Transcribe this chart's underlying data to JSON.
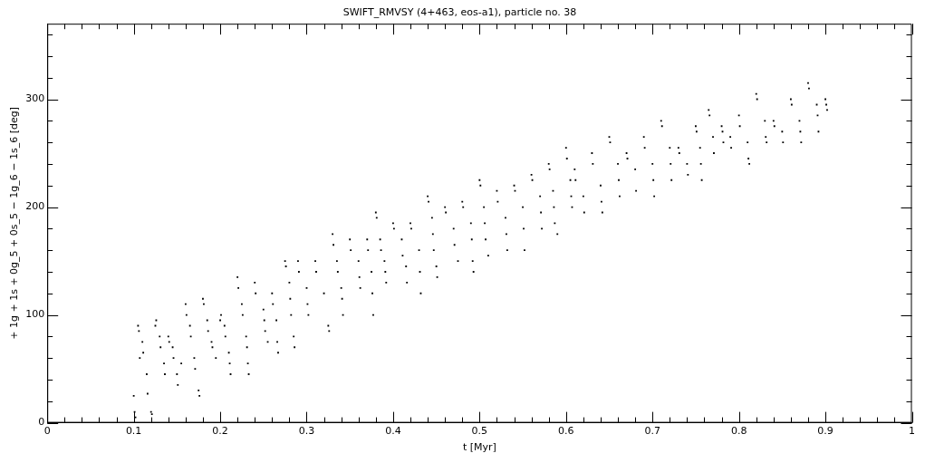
{
  "chart_data": {
    "type": "scatter",
    "title": "SWIFT_RMVSY (4+463, eos-a1), particle no. 38",
    "xlabel": "t [Myr]",
    "ylabel": "+ 1g + 1s + 0g_5 + 0s_5 − 1g_6 − 1s_6 [deg]",
    "xlim": [
      0,
      1
    ],
    "ylim": [
      0,
      370
    ],
    "xticks": [
      0,
      {
        "value": 0.02,
        "label": null
      },
      {
        "value": 0.04,
        "label": null
      },
      {
        "value": 0.06,
        "label": null
      },
      {
        "value": 0.08,
        "label": null
      },
      0.1,
      {
        "value": 0.12,
        "label": null
      },
      {
        "value": 0.14,
        "label": null
      },
      {
        "value": 0.16,
        "label": null
      },
      {
        "value": 0.18,
        "label": null
      },
      0.2,
      {
        "value": 0.22,
        "label": null
      },
      {
        "value": 0.24,
        "label": null
      },
      {
        "value": 0.26,
        "label": null
      },
      {
        "value": 0.28,
        "label": null
      },
      0.3,
      {
        "value": 0.32,
        "label": null
      },
      {
        "value": 0.34,
        "label": null
      },
      {
        "value": 0.36,
        "label": null
      },
      {
        "value": 0.38,
        "label": null
      },
      0.4,
      {
        "value": 0.42,
        "label": null
      },
      {
        "value": 0.44,
        "label": null
      },
      {
        "value": 0.46,
        "label": null
      },
      {
        "value": 0.48,
        "label": null
      },
      0.5,
      {
        "value": 0.52,
        "label": null
      },
      {
        "value": 0.54,
        "label": null
      },
      {
        "value": 0.56,
        "label": null
      },
      {
        "value": 0.58,
        "label": null
      },
      0.6,
      {
        "value": 0.62,
        "label": null
      },
      {
        "value": 0.64,
        "label": null
      },
      {
        "value": 0.66,
        "label": null
      },
      {
        "value": 0.68,
        "label": null
      },
      0.7,
      {
        "value": 0.72,
        "label": null
      },
      {
        "value": 0.74,
        "label": null
      },
      {
        "value": 0.76,
        "label": null
      },
      {
        "value": 0.78,
        "label": null
      },
      0.8,
      {
        "value": 0.82,
        "label": null
      },
      {
        "value": 0.84,
        "label": null
      },
      {
        "value": 0.86,
        "label": null
      },
      {
        "value": 0.88,
        "label": null
      },
      0.9,
      {
        "value": 0.92,
        "label": null
      },
      {
        "value": 0.94,
        "label": null
      },
      {
        "value": 0.96,
        "label": null
      },
      {
        "value": 0.98,
        "label": null
      },
      1
    ],
    "yticks": [
      0,
      {
        "value": 20,
        "label": null
      },
      {
        "value": 40,
        "label": null
      },
      {
        "value": 60,
        "label": null
      },
      {
        "value": 80,
        "label": null
      },
      100,
      {
        "value": 120,
        "label": null
      },
      {
        "value": 140,
        "label": null
      },
      {
        "value": 160,
        "label": null
      },
      {
        "value": 180,
        "label": null
      },
      200,
      {
        "value": 220,
        "label": null
      },
      {
        "value": 240,
        "label": null
      },
      {
        "value": 260,
        "label": null
      },
      {
        "value": 280,
        "label": null
      },
      300,
      {
        "value": 320,
        "label": null
      },
      {
        "value": 340,
        "label": null
      },
      {
        "value": 360,
        "label": null
      }
    ],
    "marker": "square",
    "series": [
      {
        "color": "#000000",
        "x": [
          0.1,
          0.101,
          0.102,
          0.105,
          0.106,
          0.107,
          0.11,
          0.111,
          0.115,
          0.116,
          0.12,
          0.121,
          0.125,
          0.126,
          0.13,
          0.131,
          0.135,
          0.136,
          0.14,
          0.141,
          0.145,
          0.146,
          0.15,
          0.151,
          0.155,
          0.16,
          0.161,
          0.165,
          0.166,
          0.17,
          0.171,
          0.175,
          0.176,
          0.18,
          0.181,
          0.185,
          0.186,
          0.19,
          0.191,
          0.195,
          0.2,
          0.201,
          0.205,
          0.206,
          0.21,
          0.211,
          0.212,
          0.22,
          0.221,
          0.225,
          0.226,
          0.23,
          0.231,
          0.232,
          0.233,
          0.24,
          0.241,
          0.25,
          0.251,
          0.252,
          0.255,
          0.26,
          0.261,
          0.265,
          0.266,
          0.267,
          0.275,
          0.276,
          0.28,
          0.281,
          0.282,
          0.285,
          0.286,
          0.29,
          0.291,
          0.3,
          0.301,
          0.302,
          0.31,
          0.311,
          0.32,
          0.325,
          0.326,
          0.33,
          0.331,
          0.335,
          0.336,
          0.34,
          0.341,
          0.342,
          0.35,
          0.351,
          0.36,
          0.361,
          0.362,
          0.37,
          0.371,
          0.375,
          0.376,
          0.377,
          0.38,
          0.381,
          0.385,
          0.386,
          0.39,
          0.391,
          0.392,
          0.4,
          0.401,
          0.41,
          0.411,
          0.415,
          0.416,
          0.42,
          0.421,
          0.43,
          0.431,
          0.432,
          0.44,
          0.441,
          0.445,
          0.446,
          0.447,
          0.45,
          0.451,
          0.46,
          0.461,
          0.47,
          0.471,
          0.475,
          0.48,
          0.481,
          0.49,
          0.491,
          0.492,
          0.493,
          0.5,
          0.501,
          0.505,
          0.506,
          0.507,
          0.51,
          0.52,
          0.521,
          0.53,
          0.531,
          0.532,
          0.54,
          0.541,
          0.55,
          0.551,
          0.552,
          0.56,
          0.561,
          0.57,
          0.571,
          0.572,
          0.58,
          0.581,
          0.585,
          0.586,
          0.587,
          0.59,
          0.6,
          0.601,
          0.605,
          0.606,
          0.607,
          0.61,
          0.611,
          0.62,
          0.621,
          0.63,
          0.631,
          0.64,
          0.641,
          0.642,
          0.65,
          0.651,
          0.66,
          0.661,
          0.662,
          0.67,
          0.671,
          0.68,
          0.681,
          0.69,
          0.691,
          0.7,
          0.701,
          0.702,
          0.71,
          0.711,
          0.72,
          0.721,
          0.722,
          0.73,
          0.731,
          0.74,
          0.741,
          0.75,
          0.751,
          0.755,
          0.756,
          0.757,
          0.765,
          0.766,
          0.77,
          0.771,
          0.78,
          0.781,
          0.782,
          0.79,
          0.791,
          0.8,
          0.801,
          0.81,
          0.811,
          0.812,
          0.82,
          0.821,
          0.83,
          0.831,
          0.832,
          0.84,
          0.841,
          0.85,
          0.851,
          0.86,
          0.861,
          0.87,
          0.871,
          0.872,
          0.88,
          0.881,
          0.89,
          0.891,
          0.892,
          0.9,
          0.901,
          0.902
        ],
        "values": [
          25,
          10,
          5,
          90,
          85,
          60,
          75,
          65,
          45,
          27,
          10,
          8,
          90,
          95,
          80,
          70,
          55,
          45,
          80,
          75,
          70,
          60,
          45,
          35,
          55,
          110,
          100,
          90,
          80,
          60,
          50,
          30,
          25,
          115,
          110,
          95,
          85,
          75,
          70,
          60,
          95,
          100,
          90,
          80,
          65,
          55,
          45,
          135,
          125,
          110,
          100,
          80,
          70,
          55,
          45,
          130,
          120,
          105,
          95,
          85,
          75,
          120,
          110,
          95,
          75,
          65,
          150,
          145,
          130,
          115,
          100,
          80,
          70,
          150,
          140,
          125,
          110,
          100,
          150,
          140,
          120,
          90,
          85,
          175,
          165,
          150,
          140,
          125,
          115,
          100,
          170,
          160,
          150,
          135,
          125,
          170,
          160,
          140,
          120,
          100,
          195,
          190,
          170,
          160,
          150,
          140,
          130,
          185,
          180,
          170,
          155,
          145,
          130,
          185,
          180,
          160,
          140,
          120,
          210,
          205,
          190,
          175,
          160,
          145,
          135,
          200,
          195,
          180,
          165,
          150,
          205,
          200,
          185,
          170,
          150,
          140,
          225,
          220,
          200,
          185,
          170,
          155,
          215,
          205,
          190,
          175,
          160,
          220,
          215,
          200,
          180,
          160,
          230,
          225,
          210,
          195,
          180,
          240,
          235,
          215,
          200,
          185,
          175,
          255,
          245,
          225,
          210,
          200,
          235,
          225,
          210,
          195,
          250,
          240,
          220,
          205,
          195,
          265,
          260,
          240,
          225,
          210,
          250,
          245,
          235,
          215,
          265,
          255,
          240,
          225,
          210,
          280,
          275,
          255,
          240,
          225,
          255,
          250,
          240,
          230,
          275,
          270,
          255,
          240,
          225,
          290,
          285,
          265,
          250,
          275,
          270,
          260,
          265,
          255,
          285,
          275,
          260,
          245,
          240,
          305,
          300,
          280,
          265,
          260,
          280,
          275,
          270,
          260,
          300,
          295,
          280,
          270,
          260,
          315,
          310,
          295,
          285,
          270,
          300,
          295,
          290
        ]
      }
    ]
  }
}
